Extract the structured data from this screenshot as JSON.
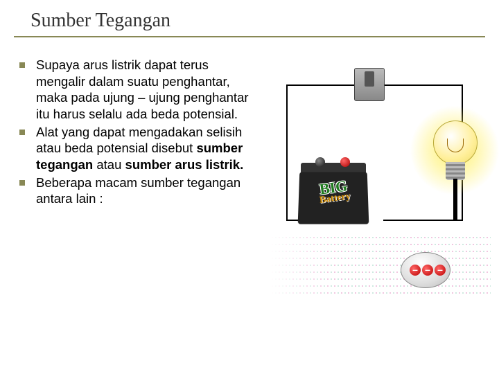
{
  "slide": {
    "title": "Sumber Tegangan",
    "bullets": [
      {
        "text": "Supaya arus listrik dapat terus mengalir dalam suatu penghantar, maka pada ujung – ujung penghantar itu harus selalu ada beda potensial."
      },
      {
        "text_pre": "Alat yang dapat mengadakan selisih atau beda potensial disebut ",
        "bold1": "sumber tegangan",
        "mid": " atau ",
        "bold2": "sumber arus listrik."
      },
      {
        "text": "Beberapa macam sumber tegangan antara lain :"
      }
    ]
  },
  "diagram": {
    "battery_label_big": "BIG",
    "battery_label_sub": "Battery",
    "electron_symbol": "–",
    "colors": {
      "title_underline": "#888855",
      "bullet": "#888855",
      "bulb_glow": "#fff066",
      "battery_body": "#222222",
      "electron": "#cc0000"
    }
  }
}
